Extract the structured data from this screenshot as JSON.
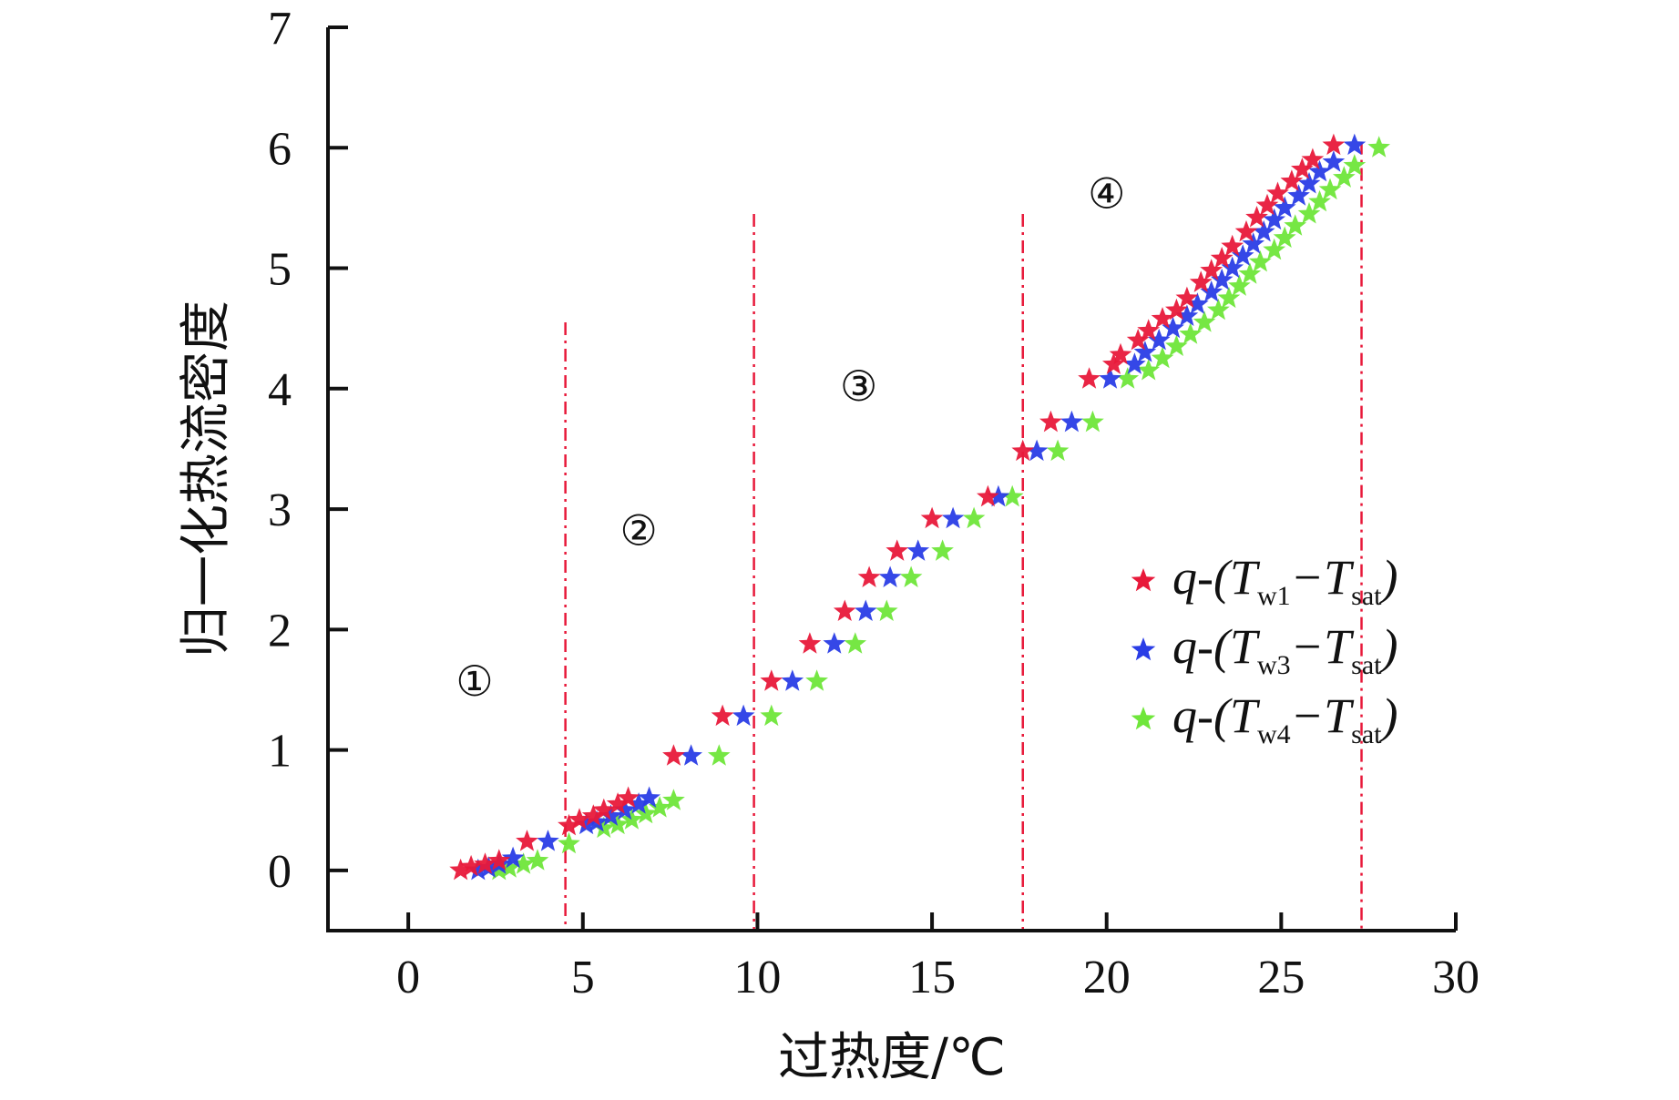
{
  "chart_data": {
    "type": "scatter",
    "xlabel": "过热度/℃",
    "ylabel": "归一化热流密度",
    "xlim": [
      -2.3,
      30
    ],
    "ylim": [
      -0.5,
      7
    ],
    "xticks": [
      0,
      5,
      10,
      15,
      20,
      25,
      30
    ],
    "yticks": [
      0,
      1,
      2,
      3,
      4,
      5,
      6,
      7
    ],
    "grid": false,
    "legend_position": "right",
    "region_boundaries": [
      4.5,
      9.9,
      17.6,
      27.3
    ],
    "region_labels": [
      {
        "text": "①",
        "x": 1.9,
        "y": 1.45
      },
      {
        "text": "②",
        "x": 6.6,
        "y": 2.7
      },
      {
        "text": "③",
        "x": 12.9,
        "y": 3.9
      },
      {
        "text": "④",
        "x": 20.0,
        "y": 5.5
      }
    ],
    "series": [
      {
        "name": "q-(Tw1-Tsat)",
        "legend": {
          "prefix": "q-(T",
          "sub1": "w1",
          "mid": "−T",
          "sub2": "sat",
          "suffix": ")"
        },
        "color": "#e8193a",
        "points": [
          [
            1.5,
            0.0
          ],
          [
            1.8,
            0.03
          ],
          [
            2.2,
            0.05
          ],
          [
            2.6,
            0.08
          ],
          [
            3.4,
            0.24
          ],
          [
            4.6,
            0.37
          ],
          [
            4.9,
            0.42
          ],
          [
            5.3,
            0.45
          ],
          [
            5.6,
            0.5
          ],
          [
            6.0,
            0.55
          ],
          [
            6.3,
            0.6
          ],
          [
            7.6,
            0.95
          ],
          [
            9.0,
            1.28
          ],
          [
            10.4,
            1.57
          ],
          [
            11.5,
            1.88
          ],
          [
            12.5,
            2.15
          ],
          [
            13.2,
            2.43
          ],
          [
            14.0,
            2.65
          ],
          [
            15.0,
            2.92
          ],
          [
            16.6,
            3.1
          ],
          [
            17.6,
            3.48
          ],
          [
            18.4,
            3.72
          ],
          [
            19.5,
            4.08
          ],
          [
            20.2,
            4.2
          ],
          [
            20.4,
            4.28
          ],
          [
            20.9,
            4.4
          ],
          [
            21.2,
            4.48
          ],
          [
            21.6,
            4.58
          ],
          [
            22.0,
            4.65
          ],
          [
            22.3,
            4.75
          ],
          [
            22.7,
            4.88
          ],
          [
            23.0,
            4.98
          ],
          [
            23.3,
            5.08
          ],
          [
            23.6,
            5.18
          ],
          [
            24.0,
            5.3
          ],
          [
            24.3,
            5.42
          ],
          [
            24.6,
            5.52
          ],
          [
            24.9,
            5.62
          ],
          [
            25.3,
            5.72
          ],
          [
            25.6,
            5.82
          ],
          [
            25.9,
            5.9
          ],
          [
            26.5,
            6.02
          ]
        ]
      },
      {
        "name": "q-(Tw3-Tsat)",
        "legend": {
          "prefix": "q-(T",
          "sub1": "w3",
          "mid": "−T",
          "sub2": "sat",
          "suffix": ")"
        },
        "color": "#2a3de6",
        "points": [
          [
            2.0,
            0.0
          ],
          [
            2.3,
            0.02
          ],
          [
            2.6,
            0.05
          ],
          [
            3.0,
            0.1
          ],
          [
            4.0,
            0.24
          ],
          [
            5.1,
            0.38
          ],
          [
            5.4,
            0.4
          ],
          [
            5.8,
            0.45
          ],
          [
            6.2,
            0.5
          ],
          [
            6.6,
            0.55
          ],
          [
            6.9,
            0.6
          ],
          [
            8.1,
            0.95
          ],
          [
            9.6,
            1.28
          ],
          [
            11.0,
            1.57
          ],
          [
            12.2,
            1.88
          ],
          [
            13.1,
            2.15
          ],
          [
            13.8,
            2.43
          ],
          [
            14.6,
            2.65
          ],
          [
            15.6,
            2.92
          ],
          [
            16.9,
            3.1
          ],
          [
            18.0,
            3.48
          ],
          [
            19.0,
            3.72
          ],
          [
            20.1,
            4.08
          ],
          [
            20.8,
            4.2
          ],
          [
            21.1,
            4.3
          ],
          [
            21.5,
            4.4
          ],
          [
            21.9,
            4.5
          ],
          [
            22.3,
            4.6
          ],
          [
            22.6,
            4.7
          ],
          [
            23.0,
            4.8
          ],
          [
            23.3,
            4.9
          ],
          [
            23.6,
            5.0
          ],
          [
            23.9,
            5.1
          ],
          [
            24.2,
            5.2
          ],
          [
            24.5,
            5.3
          ],
          [
            24.8,
            5.4
          ],
          [
            25.1,
            5.5
          ],
          [
            25.5,
            5.6
          ],
          [
            25.8,
            5.7
          ],
          [
            26.1,
            5.8
          ],
          [
            26.5,
            5.88
          ],
          [
            27.1,
            6.02
          ]
        ]
      },
      {
        "name": "q-(Tw4-Tsat)",
        "legend": {
          "prefix": "q-(T",
          "sub1": "w4",
          "mid": "−T",
          "sub2": "sat",
          "suffix": ")"
        },
        "color": "#6fe63a",
        "points": [
          [
            2.6,
            0.0
          ],
          [
            2.9,
            0.02
          ],
          [
            3.3,
            0.05
          ],
          [
            3.7,
            0.08
          ],
          [
            4.6,
            0.22
          ],
          [
            5.6,
            0.35
          ],
          [
            6.0,
            0.38
          ],
          [
            6.4,
            0.42
          ],
          [
            6.8,
            0.47
          ],
          [
            7.2,
            0.52
          ],
          [
            7.6,
            0.58
          ],
          [
            8.9,
            0.95
          ],
          [
            10.4,
            1.28
          ],
          [
            11.7,
            1.57
          ],
          [
            12.8,
            1.88
          ],
          [
            13.7,
            2.15
          ],
          [
            14.4,
            2.43
          ],
          [
            15.3,
            2.65
          ],
          [
            16.2,
            2.92
          ],
          [
            17.3,
            3.1
          ],
          [
            18.6,
            3.48
          ],
          [
            19.6,
            3.72
          ],
          [
            20.6,
            4.08
          ],
          [
            21.2,
            4.15
          ],
          [
            21.6,
            4.25
          ],
          [
            22.0,
            4.35
          ],
          [
            22.4,
            4.45
          ],
          [
            22.8,
            4.55
          ],
          [
            23.2,
            4.65
          ],
          [
            23.5,
            4.75
          ],
          [
            23.8,
            4.85
          ],
          [
            24.1,
            4.95
          ],
          [
            24.4,
            5.05
          ],
          [
            24.8,
            5.15
          ],
          [
            25.1,
            5.25
          ],
          [
            25.4,
            5.35
          ],
          [
            25.8,
            5.45
          ],
          [
            26.1,
            5.55
          ],
          [
            26.4,
            5.65
          ],
          [
            26.8,
            5.75
          ],
          [
            27.1,
            5.85
          ],
          [
            27.8,
            6.0
          ]
        ]
      }
    ]
  }
}
